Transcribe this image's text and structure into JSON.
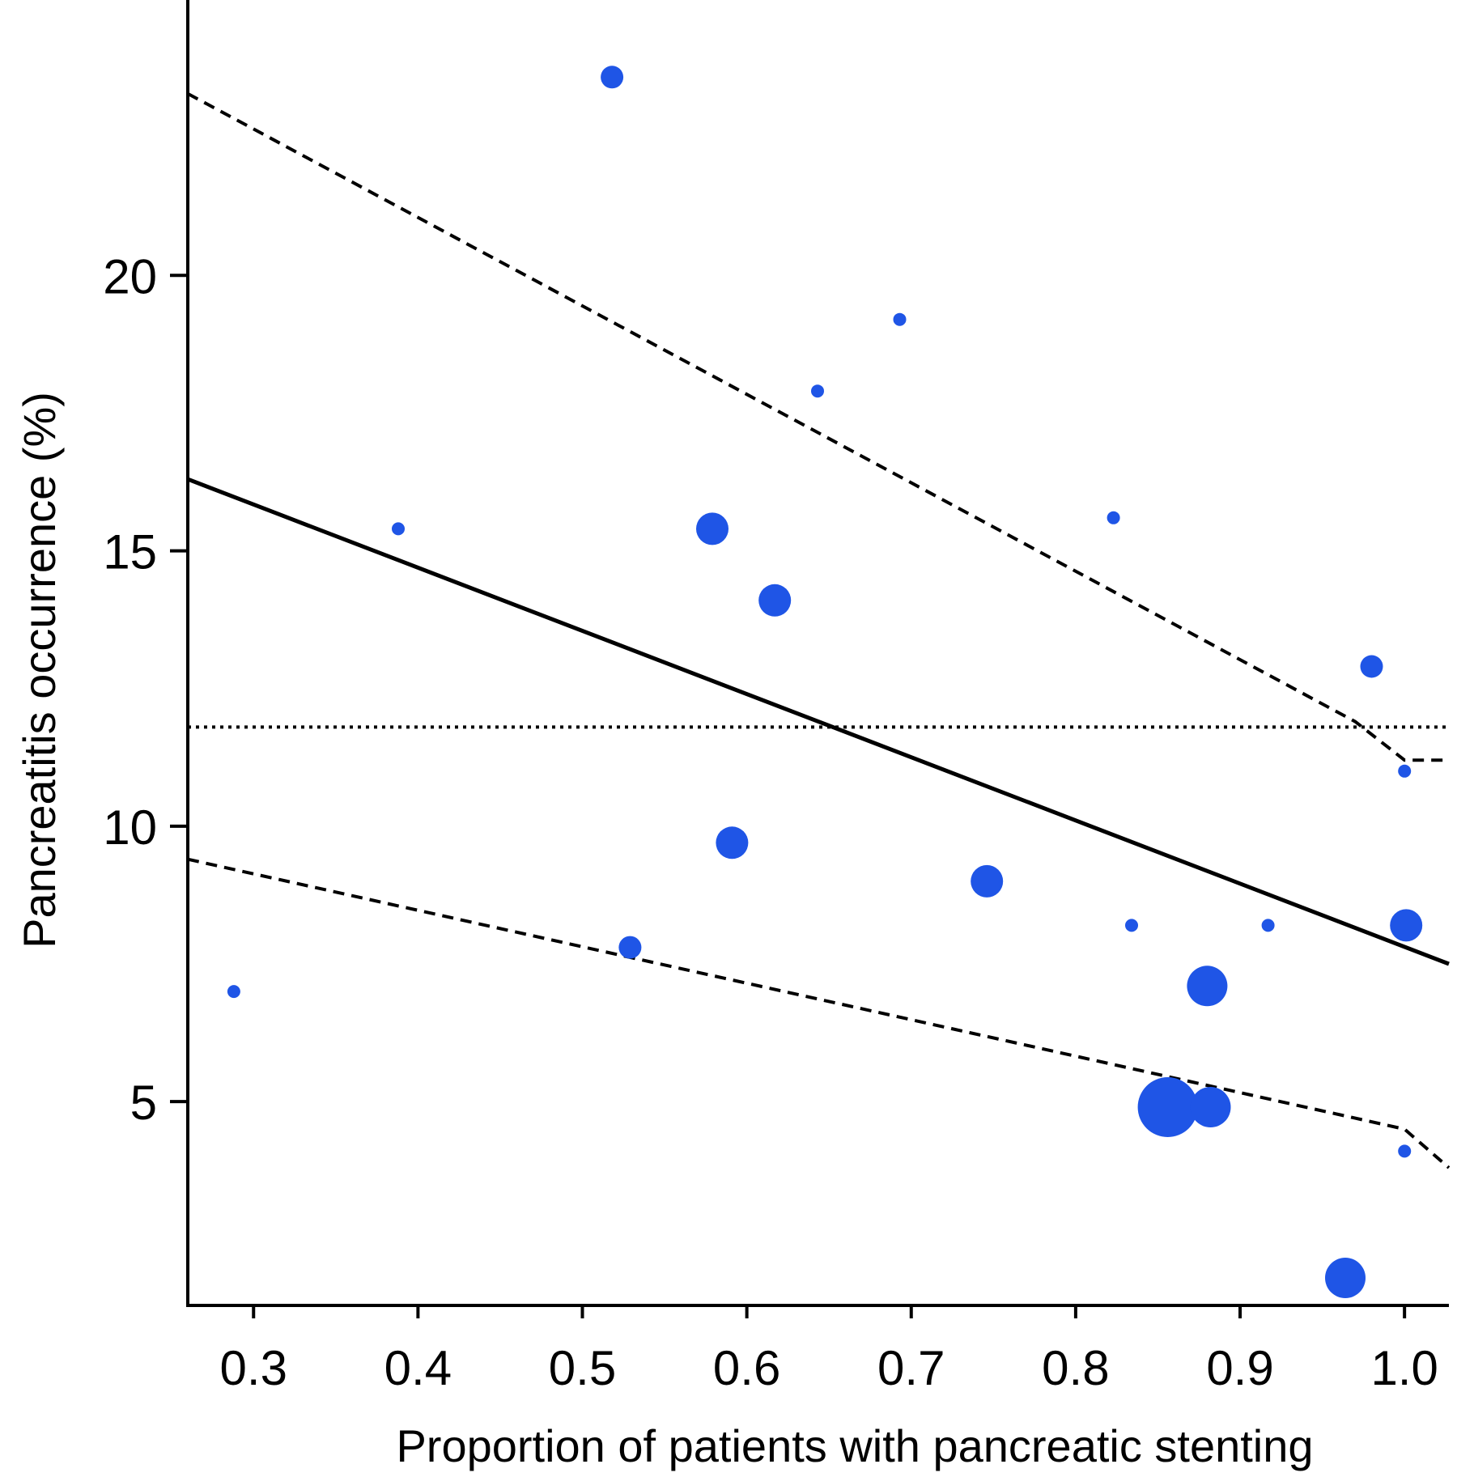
{
  "chart_data": {
    "type": "scatter",
    "title": "",
    "xlabel": "Proportion of patients with pancreatic stenting",
    "ylabel": "Pancreatitis occurrence (%)",
    "xlim": [
      0.26,
      1.027
    ],
    "ylim": [
      1.3,
      25.0
    ],
    "x_ticks": [
      0.3,
      0.4,
      0.5,
      0.6,
      0.7,
      0.8,
      0.9,
      1.0
    ],
    "x_tick_labels": [
      "0.3",
      "0.4",
      "0.5",
      "0.6",
      "0.7",
      "0.8",
      "0.9",
      "1.0"
    ],
    "y_ticks": [
      5,
      10,
      15,
      20
    ],
    "y_tick_labels": [
      "5",
      "10",
      "15",
      "20"
    ],
    "grid": false,
    "point_color": "#1f55e6",
    "points": [
      {
        "x": 0.518,
        "y": 23.6,
        "weight": 2
      },
      {
        "x": 0.693,
        "y": 19.2,
        "weight": 1
      },
      {
        "x": 0.643,
        "y": 17.9,
        "weight": 1
      },
      {
        "x": 0.388,
        "y": 15.4,
        "weight": 1
      },
      {
        "x": 0.579,
        "y": 15.4,
        "weight": 3
      },
      {
        "x": 0.823,
        "y": 15.6,
        "weight": 1
      },
      {
        "x": 0.617,
        "y": 14.1,
        "weight": 3
      },
      {
        "x": 0.98,
        "y": 12.9,
        "weight": 2
      },
      {
        "x": 1.0,
        "y": 11.0,
        "weight": 1
      },
      {
        "x": 0.591,
        "y": 9.7,
        "weight": 3
      },
      {
        "x": 0.746,
        "y": 9.0,
        "weight": 3
      },
      {
        "x": 0.834,
        "y": 8.2,
        "weight": 1
      },
      {
        "x": 0.917,
        "y": 8.2,
        "weight": 1
      },
      {
        "x": 1.001,
        "y": 8.2,
        "weight": 3
      },
      {
        "x": 0.529,
        "y": 7.8,
        "weight": 2
      },
      {
        "x": 0.288,
        "y": 7.0,
        "weight": 1
      },
      {
        "x": 0.88,
        "y": 7.1,
        "weight": 4
      },
      {
        "x": 0.856,
        "y": 4.9,
        "weight": 6
      },
      {
        "x": 0.882,
        "y": 4.9,
        "weight": 4
      },
      {
        "x": 1.0,
        "y": 4.1,
        "weight": 1
      },
      {
        "x": 0.964,
        "y": 1.8,
        "weight": 4
      }
    ],
    "lines": [
      {
        "name": "",
        "style": "solid",
        "x": [
          0.26,
          1.027
        ],
        "y": [
          16.3,
          7.5
        ]
      },
      {
        "name": "",
        "style": "dashed",
        "x": [
          0.26,
          0.97,
          1.0,
          1.027
        ],
        "y": [
          23.3,
          11.9,
          11.2,
          11.2
        ]
      },
      {
        "name": "",
        "style": "dashed",
        "x": [
          0.26,
          0.97,
          1.0,
          1.027
        ],
        "y": [
          9.4,
          4.7,
          4.5,
          3.8
        ]
      },
      {
        "name": "",
        "style": "dotted",
        "x": [
          0.26,
          1.027
        ],
        "y": [
          11.8,
          11.8
        ]
      }
    ]
  }
}
